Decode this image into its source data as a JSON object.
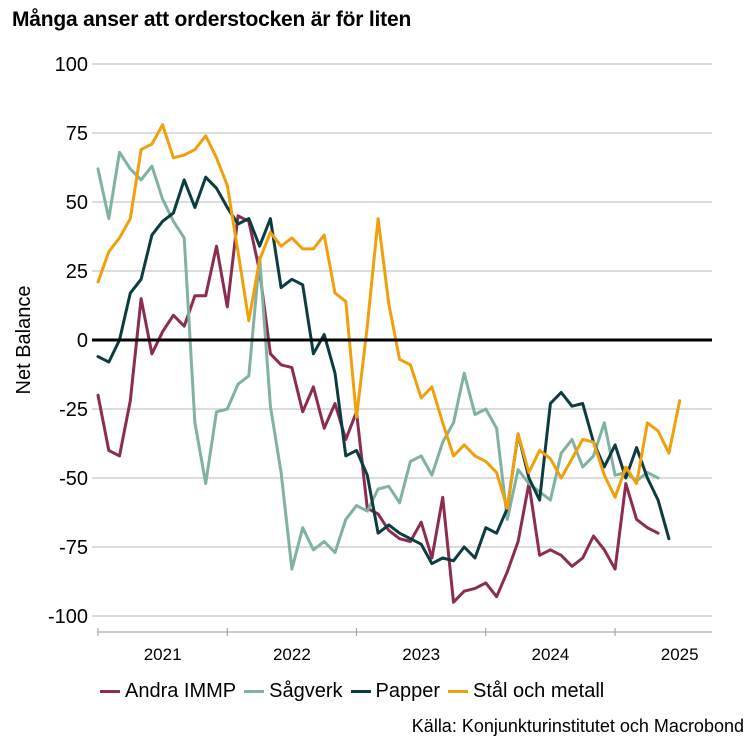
{
  "chart_data": {
    "type": "line",
    "title": "Många anser att orderstocken är för liten",
    "ylabel": "Net Balance",
    "xlabel": "",
    "ylim": [
      -100,
      100
    ],
    "yticks": [
      100,
      75,
      50,
      25,
      0,
      -25,
      -50,
      -75,
      -100
    ],
    "ytick_labels": [
      "100",
      "75",
      "50",
      "25",
      "0",
      "-25",
      "-50",
      "-75",
      "-100"
    ],
    "xrange": [
      0,
      57
    ],
    "xticks_pos": [
      0,
      12,
      24,
      36,
      48
    ],
    "xtick_labels": [
      "2021",
      "2022",
      "2023",
      "2024",
      "2025"
    ],
    "xtick_label_pos": [
      6,
      18,
      30,
      42,
      54
    ],
    "zero_line": true,
    "source": "Källa: Konjunkturinstitutet och Macrobond",
    "series": [
      {
        "name": "Andra IMMP",
        "color": "#8b2c53",
        "values": [
          -20,
          -40,
          -42,
          -22,
          15,
          -5,
          3,
          9,
          5,
          16,
          16,
          34,
          12,
          45,
          43,
          25,
          -5,
          -9,
          -10,
          -26,
          -17,
          -32,
          -23,
          -36,
          -26,
          -61,
          -63,
          -69,
          -72,
          -73,
          -66,
          -79,
          -57,
          -95,
          -91,
          -90,
          -88,
          -93,
          -84,
          -73,
          -52,
          -78,
          -76,
          -78,
          -82,
          -79,
          -71,
          -76,
          -83,
          -52,
          -65,
          -68,
          -70
        ]
      },
      {
        "name": "Sågverk",
        "color": "#7fb2a1",
        "values": [
          62,
          44,
          68,
          62,
          58,
          63,
          51,
          43,
          37,
          -30,
          -52,
          -26,
          -25,
          -16,
          -13,
          30,
          -24,
          -48,
          -83,
          -68,
          -76,
          -73,
          -77,
          -65,
          -60,
          -62,
          -54,
          -53,
          -59,
          -44,
          -42,
          -49,
          -37,
          -30,
          -12,
          -27,
          -25,
          -32,
          -65,
          -47,
          -52,
          -55,
          -58,
          -41,
          -36,
          -46,
          -42,
          -30,
          -49,
          -48,
          -51,
          -48,
          -50
        ]
      },
      {
        "name": "Papper",
        "color": "#0c3c40",
        "values": [
          -6,
          -8,
          0,
          17,
          22,
          38,
          43,
          46,
          58,
          48,
          59,
          55,
          48,
          42,
          44,
          34,
          44,
          19,
          22,
          20,
          -5,
          2,
          -12,
          -42,
          -40,
          -49,
          -70,
          -67,
          -70,
          -72,
          -74,
          -81,
          -79,
          -80,
          -75,
          -79,
          -68,
          -70,
          -61,
          -34,
          -50,
          -58,
          -23,
          -19,
          -24,
          -23,
          -37,
          -46,
          -38,
          -50,
          -39,
          -50,
          -58,
          -72
        ]
      },
      {
        "name": "Stål och metall",
        "color": "#f0a00d",
        "values": [
          21,
          32,
          37,
          44,
          69,
          71,
          78,
          66,
          67,
          69,
          74,
          66,
          56,
          32,
          7,
          29,
          39,
          34,
          37,
          33,
          33,
          38,
          17,
          14,
          -28,
          5,
          44,
          13,
          -7,
          -9,
          -21,
          -17,
          -30,
          -42,
          -38,
          -42,
          -44,
          -48,
          -61,
          -34,
          -48,
          -40,
          -43,
          -50,
          -43,
          -36,
          -37,
          -49,
          -57,
          -46,
          -52,
          -30,
          -33,
          -41,
          -22
        ]
      }
    ]
  }
}
